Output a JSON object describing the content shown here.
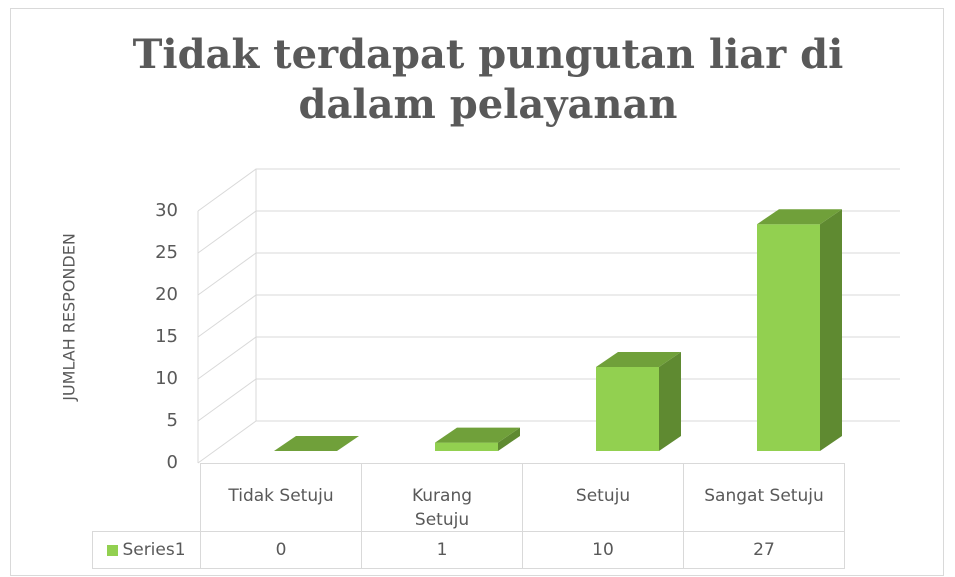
{
  "chart_data": {
    "type": "bar3d",
    "title": "Tidak terdapat pungutan liar di dalam pelayanan",
    "y_label": "JUMLAH RESPONDEN",
    "categories": [
      "Tidak Setuju",
      "Kurang Setuju",
      "Setuju",
      "Sangat Setuju"
    ],
    "series": [
      {
        "name": "Series1",
        "color": "#92d050",
        "values": [
          0,
          1,
          10,
          27
        ]
      }
    ],
    "ylim": [
      0,
      30
    ],
    "yticks": [
      0,
      5,
      10,
      15,
      20,
      25,
      30
    ],
    "grid": true,
    "data_table": true
  }
}
